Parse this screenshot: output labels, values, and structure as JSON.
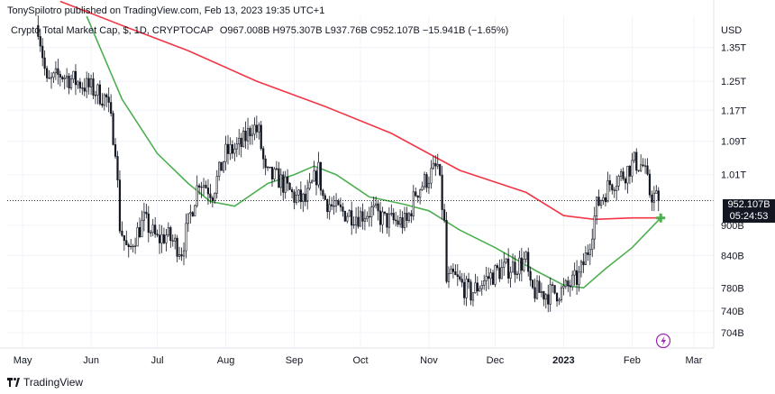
{
  "header": {
    "publisher": "TonySpilotro published on TradingView.com, Feb 13, 2023 19:35 UTC+1",
    "symbol": "Crypto Total Market Cap, $, 1D, CRYPTOCAP",
    "ohlc": "O967.008B  H975.307B  L937.76B  C952.107B  −15.941B (−1.65%)"
  },
  "price_axis": {
    "currency": "USD",
    "last_price": "952.107B",
    "countdown": "05:24:53"
  },
  "footer": {
    "brand": "TradingView"
  },
  "colors": {
    "up_candle": "#131722",
    "down_candle": "#131722",
    "ma_long": "#f23645",
    "ma_short": "#4caf50",
    "grid": "#f0f3fa",
    "last_price_line": "#131722",
    "flash_icon": "#9c27b0"
  },
  "icons": [
    "flash-icon",
    "cross-marker-icon",
    "tradingview-logo-icon"
  ],
  "chart_data": {
    "type": "candlestick",
    "title": "Crypto Total Market Cap, $, 1D, CRYPTOCAP",
    "y_scale": "log",
    "ylabel": "USD",
    "yticks": [
      {
        "v": 1350,
        "label": "1.35T"
      },
      {
        "v": 1250,
        "label": "1.25T"
      },
      {
        "v": 1170,
        "label": "1.17T"
      },
      {
        "v": 1090,
        "label": "1.09T"
      },
      {
        "v": 1010,
        "label": "1.01T"
      },
      {
        "v": 900,
        "label": "900B"
      },
      {
        "v": 840,
        "label": "840B"
      },
      {
        "v": 780,
        "label": "780B"
      },
      {
        "v": 740,
        "label": "740B"
      },
      {
        "v": 704,
        "label": "704B"
      }
    ],
    "xticks": [
      {
        "date": "2022-05-01",
        "label": "May"
      },
      {
        "date": "2022-06-01",
        "label": "Jun"
      },
      {
        "date": "2022-07-01",
        "label": "Jul"
      },
      {
        "date": "2022-08-01",
        "label": "Aug"
      },
      {
        "date": "2022-09-01",
        "label": "Sep"
      },
      {
        "date": "2022-10-01",
        "label": "Oct"
      },
      {
        "date": "2022-11-01",
        "label": "Nov"
      },
      {
        "date": "2022-12-01",
        "label": "Dec"
      },
      {
        "date": "2023-01-01",
        "label": "2023"
      },
      {
        "date": "2023-02-01",
        "label": "Feb"
      },
      {
        "date": "2023-03-01",
        "label": "Mar"
      }
    ],
    "x_range": [
      "2022-04-24",
      "2023-03-10"
    ],
    "ylim": [
      680,
      1450
    ],
    "close_path": [
      {
        "date": "2022-05-08",
        "v": 1420
      },
      {
        "date": "2022-05-10",
        "v": 1330
      },
      {
        "date": "2022-05-12",
        "v": 1240
      },
      {
        "date": "2022-05-18",
        "v": 1270
      },
      {
        "date": "2022-05-25",
        "v": 1250
      },
      {
        "date": "2022-06-01",
        "v": 1230
      },
      {
        "date": "2022-06-08",
        "v": 1200
      },
      {
        "date": "2022-06-12",
        "v": 1080
      },
      {
        "date": "2022-06-14",
        "v": 900
      },
      {
        "date": "2022-06-18",
        "v": 840
      },
      {
        "date": "2022-06-20",
        "v": 870
      },
      {
        "date": "2022-06-25",
        "v": 910
      },
      {
        "date": "2022-07-01",
        "v": 870
      },
      {
        "date": "2022-07-05",
        "v": 880
      },
      {
        "date": "2022-07-12",
        "v": 850
      },
      {
        "date": "2022-07-20",
        "v": 1000
      },
      {
        "date": "2022-07-26",
        "v": 970
      },
      {
        "date": "2022-08-01",
        "v": 1060
      },
      {
        "date": "2022-08-08",
        "v": 1080
      },
      {
        "date": "2022-08-13",
        "v": 1130
      },
      {
        "date": "2022-08-16",
        "v": 1110
      },
      {
        "date": "2022-08-19",
        "v": 1010
      },
      {
        "date": "2022-08-25",
        "v": 1000
      },
      {
        "date": "2022-09-01",
        "v": 960
      },
      {
        "date": "2022-09-06",
        "v": 950
      },
      {
        "date": "2022-09-12",
        "v": 1020
      },
      {
        "date": "2022-09-14",
        "v": 960
      },
      {
        "date": "2022-09-20",
        "v": 930
      },
      {
        "date": "2022-09-30",
        "v": 920
      },
      {
        "date": "2022-10-06",
        "v": 930
      },
      {
        "date": "2022-10-12",
        "v": 910
      },
      {
        "date": "2022-10-22",
        "v": 905
      },
      {
        "date": "2022-10-26",
        "v": 970
      },
      {
        "date": "2022-11-05",
        "v": 1030
      },
      {
        "date": "2022-11-08",
        "v": 900
      },
      {
        "date": "2022-11-09",
        "v": 790
      },
      {
        "date": "2022-11-12",
        "v": 800
      },
      {
        "date": "2022-11-20",
        "v": 770
      },
      {
        "date": "2022-11-25",
        "v": 790
      },
      {
        "date": "2022-12-02",
        "v": 810
      },
      {
        "date": "2022-12-10",
        "v": 820
      },
      {
        "date": "2022-12-15",
        "v": 830
      },
      {
        "date": "2022-12-17",
        "v": 775
      },
      {
        "date": "2022-12-25",
        "v": 770
      },
      {
        "date": "2023-01-01",
        "v": 775
      },
      {
        "date": "2023-01-08",
        "v": 800
      },
      {
        "date": "2023-01-12",
        "v": 850
      },
      {
        "date": "2023-01-16",
        "v": 940
      },
      {
        "date": "2023-01-22",
        "v": 990
      },
      {
        "date": "2023-01-28",
        "v": 1010
      },
      {
        "date": "2023-02-02",
        "v": 1040
      },
      {
        "date": "2023-02-06",
        "v": 1030
      },
      {
        "date": "2023-02-09",
        "v": 970
      },
      {
        "date": "2023-02-13",
        "v": 952.107
      }
    ],
    "series": [
      {
        "name": "",
        "points": [
          {
            "date": "2022-05-18",
            "v": 1500
          },
          {
            "date": "2022-06-15",
            "v": 1420
          },
          {
            "date": "2022-07-15",
            "v": 1340
          },
          {
            "date": "2022-08-15",
            "v": 1250
          },
          {
            "date": "2022-09-15",
            "v": 1180
          },
          {
            "date": "2022-10-15",
            "v": 1110
          },
          {
            "date": "2022-11-15",
            "v": 1020
          },
          {
            "date": "2022-12-15",
            "v": 970
          },
          {
            "date": "2023-01-01",
            "v": 920
          },
          {
            "date": "2023-01-15",
            "v": 912
          },
          {
            "date": "2023-02-01",
            "v": 915
          },
          {
            "date": "2023-02-14",
            "v": 915
          }
        ]
      },
      {
        "name": "",
        "points": [
          {
            "date": "2022-05-30",
            "v": 1450
          },
          {
            "date": "2022-06-15",
            "v": 1200
          },
          {
            "date": "2022-07-01",
            "v": 1060
          },
          {
            "date": "2022-07-15",
            "v": 990
          },
          {
            "date": "2022-07-25",
            "v": 950
          },
          {
            "date": "2022-08-05",
            "v": 940
          },
          {
            "date": "2022-08-20",
            "v": 990
          },
          {
            "date": "2022-09-01",
            "v": 1010
          },
          {
            "date": "2022-09-10",
            "v": 1030
          },
          {
            "date": "2022-09-20",
            "v": 1010
          },
          {
            "date": "2022-10-05",
            "v": 960
          },
          {
            "date": "2022-10-20",
            "v": 945
          },
          {
            "date": "2022-11-01",
            "v": 930
          },
          {
            "date": "2022-11-15",
            "v": 890
          },
          {
            "date": "2022-12-01",
            "v": 855
          },
          {
            "date": "2022-12-20",
            "v": 810
          },
          {
            "date": "2023-01-01",
            "v": 785
          },
          {
            "date": "2023-01-10",
            "v": 780
          },
          {
            "date": "2023-01-20",
            "v": 815
          },
          {
            "date": "2023-02-01",
            "v": 855
          },
          {
            "date": "2023-02-14",
            "v": 915
          }
        ]
      }
    ]
  }
}
